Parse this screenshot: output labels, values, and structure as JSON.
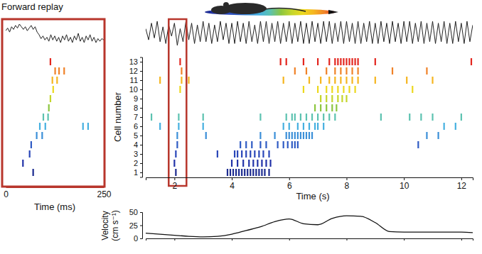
{
  "chart_data": [
    {
      "type": "raster",
      "title": "Forward replay",
      "xlabel": "Time (ms)",
      "xlim": [
        0,
        250
      ],
      "xticks": [
        0,
        250
      ],
      "ylim": [
        0.5,
        13.5
      ],
      "tick_labels": "x",
      "marker": "line",
      "lfp": {
        "color": "#222222",
        "x": [
          0,
          5,
          10,
          15,
          20,
          25,
          30,
          35,
          40,
          45,
          50,
          55,
          60,
          65,
          70,
          75,
          80,
          85,
          90,
          95,
          100,
          105,
          110,
          115,
          120,
          125,
          130,
          135,
          140,
          145,
          150,
          155,
          160,
          165,
          170,
          175,
          180,
          185,
          190,
          195,
          200,
          205,
          210,
          215,
          220,
          225,
          230,
          235,
          240,
          245,
          250
        ],
        "values": [
          0.3,
          0.5,
          0.2,
          0.6,
          0.4,
          0.7,
          0.5,
          0.8,
          0.6,
          0.4,
          0.6,
          0.3,
          0.5,
          0.7,
          0.4,
          0.6,
          0.2,
          0.0,
          -0.3,
          -0.1,
          -0.4,
          -0.2,
          -0.5,
          0.0,
          -0.4,
          -0.1,
          -0.5,
          -0.2,
          -0.6,
          -0.1,
          -0.4,
          0.0,
          -0.5,
          -0.2,
          -0.6,
          -0.1,
          -0.4,
          0.1,
          -0.5,
          -0.2,
          -0.6,
          -0.1,
          -0.4,
          0.0,
          -0.5,
          -0.2,
          -0.6,
          -0.3,
          -0.5,
          -0.3,
          -0.4
        ]
      },
      "series": [
        {
          "cell": 1,
          "color": "#1b2a8f",
          "x": [
            70
          ]
        },
        {
          "cell": 2,
          "color": "#2233a8",
          "x": [
            44
          ]
        },
        {
          "cell": 3,
          "color": "#2946b8",
          "x": [
            61
          ]
        },
        {
          "cell": 4,
          "color": "#2f5bc4",
          "x": [
            65
          ]
        },
        {
          "cell": 5,
          "color": "#3b8fd8",
          "x": [
            79,
            93
          ]
        },
        {
          "cell": 6,
          "color": "#45b0e0",
          "x": [
            87,
            101,
            197,
            210
          ]
        },
        {
          "cell": 7,
          "color": "#5cc2b0",
          "x": [
            96,
            108
          ]
        },
        {
          "cell": 8,
          "color": "#8cc63f",
          "x": [
            110
          ]
        },
        {
          "cell": 9,
          "color": "#c5d62b",
          "x": [
            114
          ]
        },
        {
          "cell": 10,
          "color": "#ecd81e",
          "x": [
            121
          ]
        },
        {
          "cell": 11,
          "color": "#f5b51f",
          "x": [
            119,
            131
          ]
        },
        {
          "cell": 12,
          "color": "#f08228",
          "x": [
            126,
            136,
            149
          ]
        },
        {
          "cell": 13,
          "color": "#e3261f",
          "x": [
            114
          ]
        }
      ]
    },
    {
      "type": "raster",
      "xlabel": "Time (s)",
      "ylabel": "Cell number",
      "xlim": [
        1,
        12.4
      ],
      "xticks": [
        2,
        4,
        6,
        8,
        10,
        12
      ],
      "ylim": [
        0.5,
        13.5
      ],
      "yticks": [
        1,
        2,
        3,
        4,
        5,
        6,
        7,
        8,
        9,
        10,
        11,
        12,
        13
      ],
      "marker": "line",
      "highlight": [
        1.8,
        2.42
      ],
      "lfp": {
        "color": "#222222",
        "x": [
          1.0,
          1.1,
          1.2,
          1.3,
          1.4,
          1.5,
          1.6,
          1.7,
          1.8,
          1.9,
          2.0,
          2.1,
          2.2,
          2.3,
          2.4,
          2.5,
          2.6,
          2.7,
          2.8,
          2.9,
          3.0,
          3.1,
          3.2,
          3.3,
          3.4,
          3.5,
          3.6,
          3.7,
          3.8,
          3.9,
          4.0,
          4.1,
          4.2,
          4.3,
          4.4,
          4.5,
          4.6,
          4.7,
          4.8,
          4.9,
          5.0,
          5.1,
          5.2,
          5.3,
          5.4,
          5.5,
          5.6,
          5.7,
          5.8,
          5.9,
          6.0,
          6.1,
          6.2,
          6.3,
          6.4,
          6.5,
          6.6,
          6.7,
          6.8,
          6.9,
          7.0,
          7.1,
          7.2,
          7.3,
          7.4,
          7.5,
          7.6,
          7.7,
          7.8,
          7.9,
          8.0,
          8.1,
          8.2,
          8.3,
          8.4,
          8.5,
          8.6,
          8.7,
          8.8,
          8.9,
          9.0,
          9.1,
          9.2,
          9.3,
          9.4,
          9.5,
          9.6,
          9.7,
          9.8,
          9.9,
          10.0,
          10.1,
          10.2,
          10.3,
          10.4,
          10.5,
          10.6,
          10.7,
          10.8,
          10.9,
          11.0,
          11.1,
          11.2,
          11.3,
          11.4,
          11.5,
          11.6,
          11.7,
          11.8,
          11.9,
          12.0,
          12.1,
          12.2,
          12.3,
          12.4
        ],
        "values": [
          0.2,
          -0.4,
          0.5,
          -0.3,
          0.6,
          -0.5,
          0.3,
          -0.6,
          0.4,
          -0.2,
          0.5,
          -0.7,
          0.2,
          -0.5,
          0.6,
          -0.4,
          0.5,
          -0.6,
          0.4,
          -0.5,
          0.6,
          -0.5,
          0.5,
          -0.6,
          0.4,
          -0.5,
          0.6,
          -0.4,
          0.5,
          -0.6,
          0.5,
          -0.6,
          0.6,
          -0.5,
          0.5,
          -0.6,
          0.6,
          -0.5,
          0.4,
          -0.6,
          0.6,
          -0.5,
          0.6,
          -0.6,
          0.5,
          -0.5,
          0.6,
          -0.6,
          0.5,
          -0.5,
          0.6,
          -0.6,
          0.5,
          -0.5,
          0.6,
          -0.6,
          0.5,
          -0.6,
          0.6,
          -0.5,
          0.5,
          -0.6,
          0.6,
          -0.5,
          0.6,
          -0.6,
          0.5,
          -0.5,
          0.6,
          -0.6,
          0.6,
          -0.5,
          0.5,
          -0.6,
          0.6,
          -0.6,
          0.5,
          -0.5,
          0.6,
          -0.6,
          0.5,
          -0.6,
          0.6,
          -0.5,
          0.5,
          -0.6,
          0.6,
          -0.5,
          0.5,
          -0.6,
          0.6,
          -0.5,
          0.6,
          -0.6,
          0.5,
          -0.5,
          0.6,
          -0.6,
          0.5,
          -0.5,
          0.6,
          -0.6,
          0.5,
          -0.5,
          0.6,
          -0.6,
          0.5,
          -0.6,
          0.6,
          -0.5,
          0.5,
          -0.6,
          0.6,
          -0.5,
          0.4
        ]
      },
      "series": [
        {
          "cell": 1,
          "color": "#1b2a8f",
          "x": [
            2.05,
            3.85,
            3.95,
            4.05,
            4.15,
            4.25,
            4.35,
            4.45,
            4.55,
            4.65,
            4.75,
            4.85,
            4.95,
            5.05,
            5.15,
            5.3
          ]
        },
        {
          "cell": 2,
          "color": "#2233a8",
          "x": [
            2.0,
            4.0,
            4.2,
            4.4,
            4.6,
            4.75,
            4.9,
            5.05,
            5.2,
            5.35
          ]
        },
        {
          "cell": 3,
          "color": "#2946b8",
          "x": [
            2.05,
            3.5,
            4.1,
            4.2,
            4.35,
            4.5,
            4.65,
            4.8,
            4.95,
            5.1,
            5.3
          ]
        },
        {
          "cell": 4,
          "color": "#2f5bc4",
          "x": [
            2.1,
            4.3,
            4.5,
            4.7,
            5.0,
            5.2,
            5.6,
            5.8,
            5.95,
            6.1,
            6.2,
            6.3,
            10.5
          ]
        },
        {
          "cell": 5,
          "color": "#3b8fd8",
          "x": [
            2.1,
            3.1,
            5.0,
            5.5,
            5.9,
            6.0,
            6.1,
            6.2,
            6.3,
            6.4,
            6.5,
            6.6,
            6.7,
            6.8,
            10.8,
            11.2
          ]
        },
        {
          "cell": 6,
          "color": "#45b0e0",
          "x": [
            1.5,
            2.15,
            3.0,
            5.8,
            6.0,
            6.3,
            6.5,
            6.7,
            6.9,
            7.0,
            7.2,
            11.4,
            11.8
          ]
        },
        {
          "cell": 7,
          "color": "#5cc2b0",
          "x": [
            1.2,
            2.15,
            3.0,
            5.0,
            5.9,
            6.1,
            6.2,
            6.4,
            6.6,
            6.8,
            7.0,
            7.2,
            7.4,
            7.6,
            9.2,
            10.2,
            10.6,
            11.0,
            12.0
          ]
        },
        {
          "cell": 8,
          "color": "#8cc63f",
          "x": [
            6.9,
            7.1,
            7.3,
            7.5,
            7.65
          ]
        },
        {
          "cell": 9,
          "color": "#c5d62b",
          "x": [
            7.1,
            7.3,
            7.5,
            7.7,
            7.85,
            8.0
          ]
        },
        {
          "cell": 10,
          "color": "#ecd81e",
          "x": [
            2.2,
            6.5,
            7.0,
            7.3,
            7.5,
            7.7,
            7.9,
            8.1,
            8.3,
            10.3
          ]
        },
        {
          "cell": 11,
          "color": "#f5b51f",
          "x": [
            1.5,
            2.25,
            2.5,
            5.8,
            6.7,
            7.1,
            7.4,
            7.6,
            7.8,
            8.0,
            8.2,
            8.4,
            9.0,
            10.1,
            11.0
          ]
        },
        {
          "cell": 12,
          "color": "#f08228",
          "x": [
            2.25,
            6.2,
            6.6,
            7.3,
            7.6,
            7.8,
            8.0,
            8.2,
            8.4,
            9.6,
            10.8
          ]
        },
        {
          "cell": 13,
          "color": "#e3261f",
          "x": [
            2.2,
            5.7,
            5.9,
            6.5,
            7.0,
            7.4,
            7.6,
            7.7,
            7.8,
            7.9,
            8.0,
            8.1,
            8.2,
            8.3,
            8.4,
            9.0,
            12.35
          ]
        }
      ]
    },
    {
      "type": "line",
      "ylabel": [
        "Velocity",
        "(cm s⁻¹)"
      ],
      "xlim": [
        1,
        12.4
      ],
      "xticks": [
        2,
        4,
        6,
        8,
        10,
        12
      ],
      "ylim": [
        0,
        50
      ],
      "yticks": [
        0,
        25,
        50
      ],
      "tick_labels": "y",
      "series": [
        {
          "color": "#111111",
          "x": [
            1.0,
            1.5,
            2.0,
            2.5,
            3.0,
            3.5,
            4.0,
            4.5,
            5.0,
            5.5,
            6.0,
            6.5,
            7.0,
            7.5,
            8.0,
            8.5,
            9.0,
            9.5,
            10.0,
            10.5,
            11.0,
            11.5,
            12.0,
            12.4
          ],
          "values": [
            10,
            8,
            6,
            4,
            3,
            4,
            8,
            15,
            22,
            32,
            37,
            28,
            26,
            38,
            43,
            42,
            30,
            13,
            12,
            12,
            12,
            12,
            12,
            11
          ]
        }
      ]
    }
  ]
}
